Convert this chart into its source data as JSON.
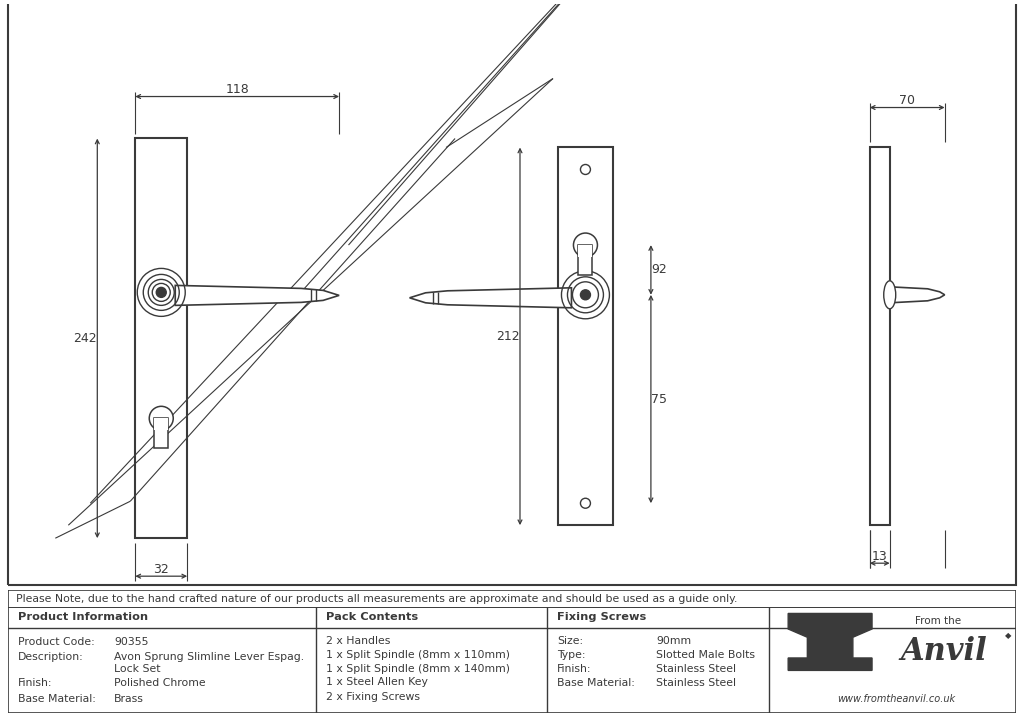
{
  "bg_color": "#ffffff",
  "line_color": "#3a3a3a",
  "note_text": "Please Note, due to the hand crafted nature of our products all measurements are approximate and should be used as a guide only.",
  "product_info": {
    "header": "Product Information",
    "rows": [
      [
        "Product Code:",
        "90355"
      ],
      [
        "Description:",
        "Avon Sprung Slimline Lever Espag."
      ],
      [
        "",
        "Lock Set"
      ],
      [
        "Finish:",
        "Polished Chrome"
      ],
      [
        "Base Material:",
        "Brass"
      ]
    ]
  },
  "pack_contents": {
    "header": "Pack Contents",
    "rows": [
      "2 x Handles",
      "1 x Split Spindle (8mm x 110mm)",
      "1 x Split Spindle (8mm x 140mm)",
      "1 x Steel Allen Key",
      "2 x Fixing Screws"
    ]
  },
  "fixing_screws": {
    "header": "Fixing Screws",
    "rows": [
      [
        "Size:",
        "90mm"
      ],
      [
        "Type:",
        "Slotted Male Bolts"
      ],
      [
        "Finish:",
        "Stainless Steel"
      ],
      [
        "Base Material:",
        "Stainless Steel"
      ]
    ]
  },
  "dim_118": "118",
  "dim_242": "242",
  "dim_32": "32",
  "dim_212": "212",
  "dim_75": "75",
  "dim_92": "92",
  "dim_70": "70",
  "dim_13": "13"
}
